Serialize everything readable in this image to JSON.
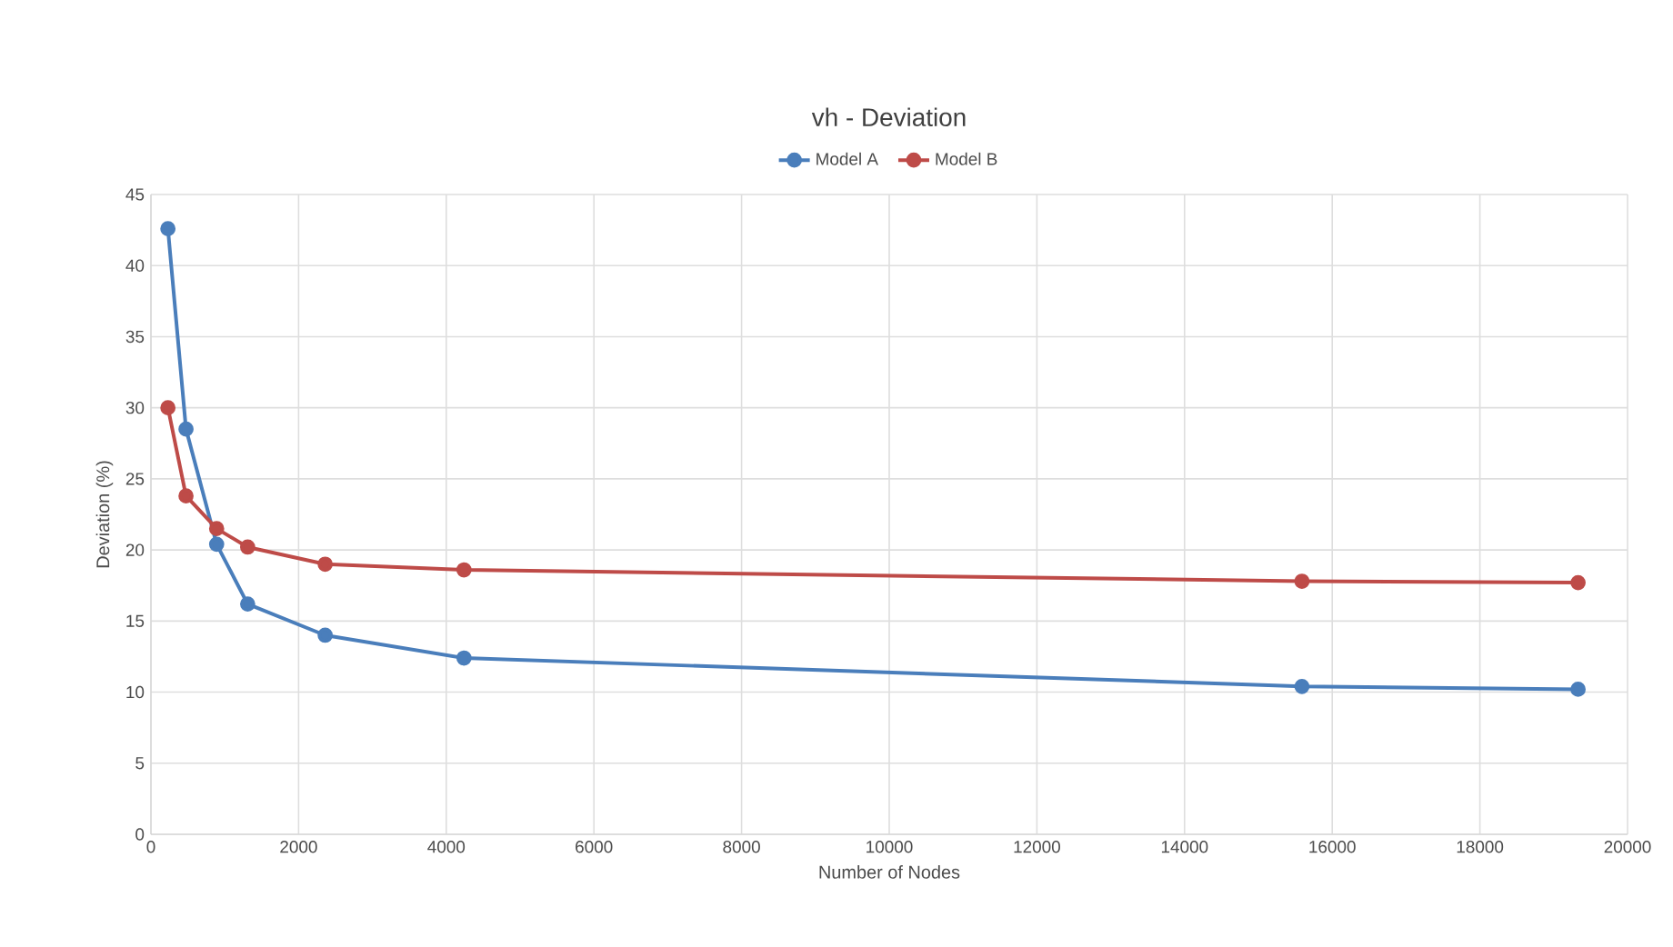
{
  "chart_data": {
    "type": "line",
    "title": "vh - Deviation",
    "xlabel": "Number of Nodes",
    "ylabel": "Deviation (%)",
    "xlim": [
      0,
      20000
    ],
    "xticks": [
      0,
      2000,
      4000,
      6000,
      8000,
      10000,
      12000,
      14000,
      16000,
      18000,
      20000
    ],
    "ylim": [
      0,
      45
    ],
    "yticks": [
      0,
      5,
      10,
      15,
      20,
      25,
      30,
      35,
      40,
      45
    ],
    "grid": true,
    "legend": "top",
    "marker": "circle",
    "line_style": "solid",
    "series": [
      {
        "name": "Model A",
        "color": "#4a7ebb",
        "x": [
          230,
          475,
          890,
          1310,
          2360,
          4240,
          15590,
          19330
        ],
        "values": [
          42.6,
          28.5,
          20.4,
          16.2,
          14.0,
          12.4,
          10.4,
          10.2
        ]
      },
      {
        "name": "Model B",
        "color": "#be4b48",
        "x": [
          230,
          475,
          890,
          1310,
          2360,
          4240,
          15590,
          19330
        ],
        "values": [
          30.0,
          23.8,
          21.5,
          20.2,
          19.0,
          18.6,
          17.8,
          17.7
        ]
      }
    ]
  }
}
